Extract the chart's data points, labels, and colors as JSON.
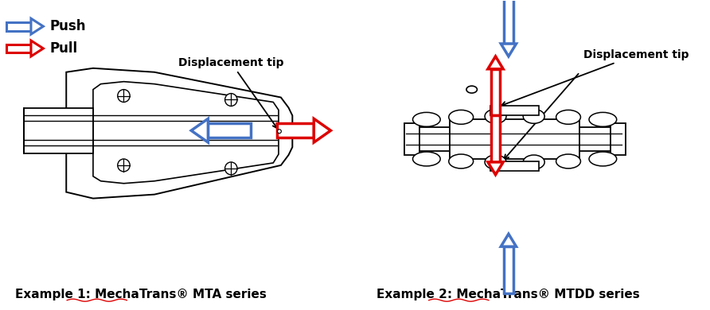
{
  "background_color": "#ffffff",
  "push_label": "Push",
  "pull_label": "Pull",
  "disp_tip_label": "Displacement tip",
  "example1_label": "Example 1: MechaTrans® MTA series",
  "example2_label": "Example 2: MechaTrans® MTDD series",
  "blue_color": "#4472c4",
  "red_color": "#dd0000",
  "black_color": "#000000",
  "label_fontsize": 10,
  "example_fontsize": 11,
  "bold_fontsize": 10
}
